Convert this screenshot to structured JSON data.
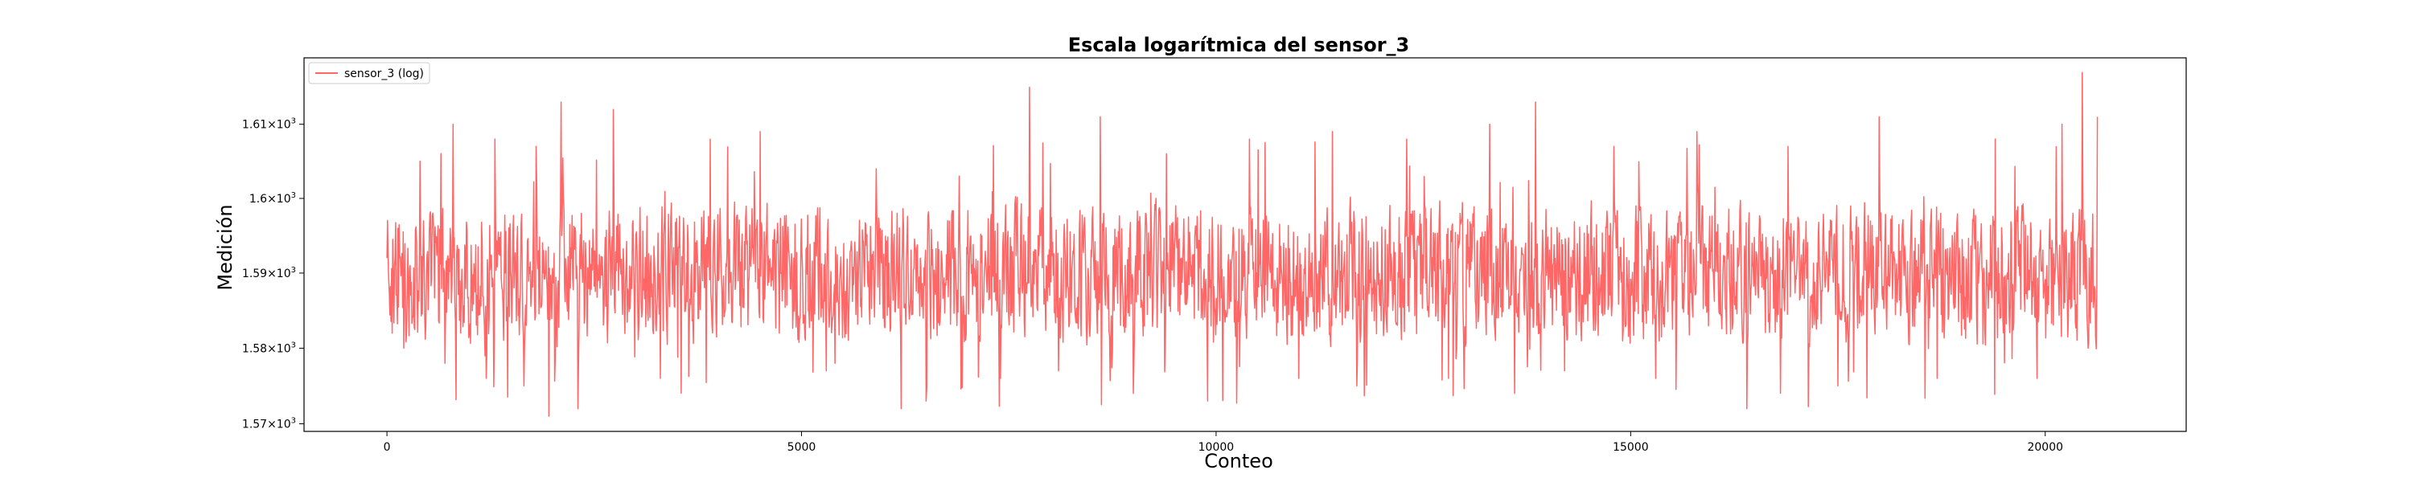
{
  "chart_data": {
    "type": "line",
    "title": "Escala logarítmica del sensor_3",
    "xlabel": "Conteo",
    "ylabel": "Medición",
    "xlim": [
      -1000,
      21700
    ],
    "ylim": [
      1569,
      1619
    ],
    "yscale": "log",
    "grid": false,
    "legend_position": "top-left",
    "x_ticks": [
      0,
      5000,
      10000,
      15000,
      20000
    ],
    "x_tick_labels": [
      "0",
      "5000",
      "10000",
      "15000",
      "20000"
    ],
    "y_ticks": [
      1570,
      1580,
      1590,
      1600,
      1610
    ],
    "y_tick_base": "1.57×10",
    "y_tick_labels": [
      "1.57×10",
      "1.58×10",
      "1.59×10",
      "1.6×10",
      "1.61×10"
    ],
    "y_tick_exponent": "3",
    "series": [
      {
        "name": "sensor_3 (log)",
        "color": "#ff6666",
        "x_range": [
          0,
          20631
        ],
        "typical_range": [
          1583,
          1597
        ],
        "min": 1571,
        "max": 1617,
        "sample_values": [
          [
            0,
            1592
          ],
          [
            60,
            1582
          ],
          [
            130,
            1596
          ],
          [
            200,
            1580
          ],
          [
            400,
            1605
          ],
          [
            700,
            1578
          ],
          [
            800,
            1610
          ],
          [
            1200,
            1576
          ],
          [
            1300,
            1608
          ],
          [
            1650,
            1575
          ],
          [
            1800,
            1607
          ],
          [
            1950,
            1571
          ],
          [
            2100,
            1613
          ],
          [
            2300,
            1572
          ],
          [
            2730,
            1612
          ],
          [
            3300,
            1576
          ],
          [
            3900,
            1608
          ],
          [
            4500,
            1609
          ],
          [
            5300,
            1577
          ],
          [
            5900,
            1604
          ],
          [
            6200,
            1572
          ],
          [
            6500,
            1573
          ],
          [
            6900,
            1603
          ],
          [
            7400,
            1576
          ],
          [
            7750,
            1615
          ],
          [
            8100,
            1577
          ],
          [
            8600,
            1611
          ],
          [
            9000,
            1574
          ],
          [
            9400,
            1606
          ],
          [
            9900,
            1573
          ],
          [
            10400,
            1608
          ],
          [
            11000,
            1576
          ],
          [
            11400,
            1609
          ],
          [
            11700,
            1575
          ],
          [
            12300,
            1608
          ],
          [
            12800,
            1576
          ],
          [
            13300,
            1610
          ],
          [
            13600,
            1574
          ],
          [
            13850,
            1613
          ],
          [
            14200,
            1577
          ],
          [
            14800,
            1607
          ],
          [
            15300,
            1576
          ],
          [
            15800,
            1609
          ],
          [
            16400,
            1572
          ],
          [
            16900,
            1607
          ],
          [
            17500,
            1575
          ],
          [
            18000,
            1611
          ],
          [
            18700,
            1576
          ],
          [
            19400,
            1608
          ],
          [
            19900,
            1576
          ],
          [
            20200,
            1610
          ],
          [
            20450,
            1617
          ],
          [
            20520,
            1580
          ],
          [
            20631,
            1611
          ]
        ]
      }
    ]
  }
}
